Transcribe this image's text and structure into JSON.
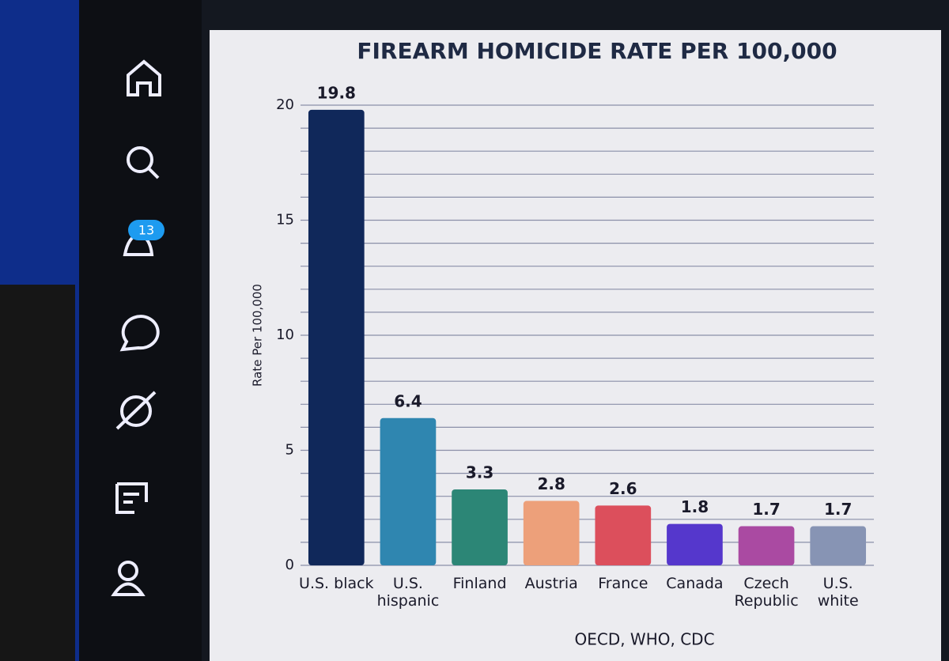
{
  "nav": {
    "notification_count": "13"
  },
  "chart_data": {
    "type": "bar",
    "title": "FIREARM HOMICIDE RATE PER 100,000",
    "y_label": "Rate Per 100,000",
    "categories": [
      "U.S. black",
      "U.S. hispanic",
      "Finland",
      "Austria",
      "France",
      "Canada",
      "Czech Republic",
      "U.S. white"
    ],
    "values": [
      19.8,
      6.4,
      3.3,
      2.8,
      2.6,
      1.8,
      1.7,
      1.7
    ],
    "colors": [
      "#10285a",
      "#2f86b0",
      "#2c8676",
      "#eda07a",
      "#dc4f5c",
      "#5537cc",
      "#aa4aa2",
      "#8794b4"
    ],
    "ylim": [
      0,
      20
    ],
    "yticks": [
      0,
      5,
      10,
      15,
      20
    ],
    "minor_yticks": [
      1,
      2,
      3,
      4,
      6,
      7,
      8,
      9,
      11,
      12,
      13,
      14,
      16,
      17,
      18,
      19
    ],
    "grid": true,
    "source": "OECD, WHO, CDC"
  }
}
